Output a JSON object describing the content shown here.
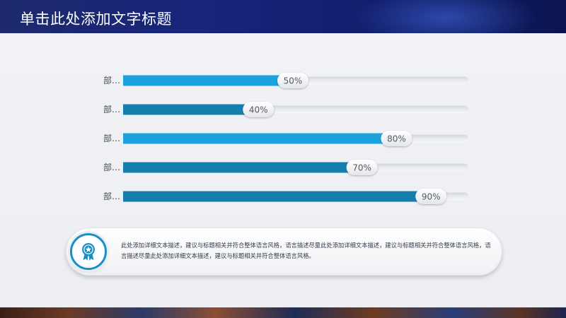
{
  "header": {
    "title": "单击此处添加文字标题"
  },
  "chart_data": {
    "type": "bar",
    "orientation": "horizontal",
    "categories": [
      "部…",
      "部…",
      "部…",
      "部…",
      "部…"
    ],
    "values": [
      50,
      40,
      80,
      70,
      90
    ],
    "value_labels": [
      "50%",
      "40%",
      "80%",
      "70%",
      "90%"
    ],
    "xlim": [
      0,
      100
    ],
    "colors": [
      "#1aa3dc",
      "#147fae",
      "#1aa3dc",
      "#147fae",
      "#147fae"
    ]
  },
  "note": {
    "icon": "award-badge-icon",
    "text": "此处添加详细文本描述，建议与标题相关并符合整体语言风格，语言描述尽量此处添加详细文本描述，建议与标题相关并符合整体语言风格，语言描述尽量此处添加详细文本描述，建议与标题相关并符合整体语言风格。"
  }
}
